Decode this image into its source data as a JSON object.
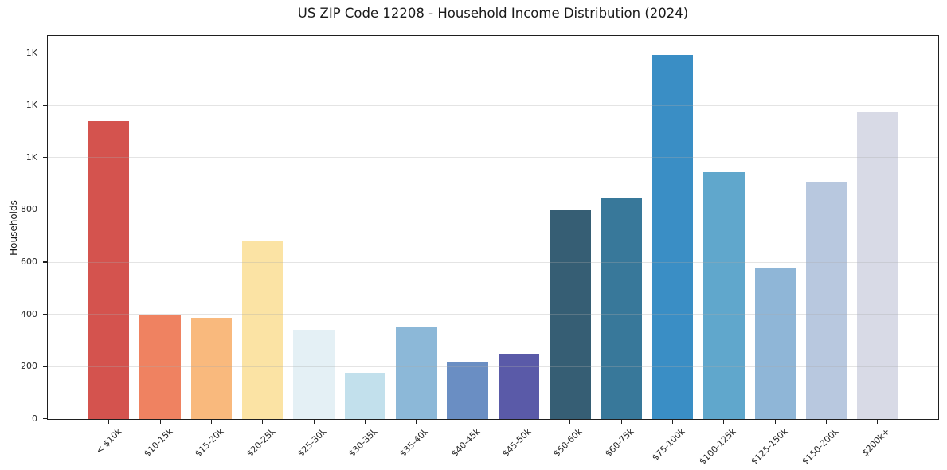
{
  "title": "US ZIP Code 12208 - Household Income Distribution (2024)",
  "ylabel": "Households",
  "chart_data": {
    "type": "bar",
    "title": "US ZIP Code 12208 - Household Income Distribution (2024)",
    "xlabel": "",
    "ylabel": "Households",
    "categories": [
      "< $10k",
      "$10-15k",
      "$15-20k",
      "$20-25k",
      "$25-30k",
      "$30-35k",
      "$35-40k",
      "$40-45k",
      "$45-50k",
      "$50-60k",
      "$60-75k",
      "$75-100k",
      "$100-125k",
      "$125-150k",
      "$150-200k",
      "$200k+"
    ],
    "values": [
      1140,
      400,
      388,
      682,
      341,
      178,
      350,
      218,
      247,
      797,
      846,
      1392,
      943,
      576,
      909,
      1177
    ],
    "bar_colors": [
      "#d4534e",
      "#ef8261",
      "#f9b97d",
      "#fbe3a4",
      "#e4f0f5",
      "#c2e0ec",
      "#8cb8d8",
      "#6a8ec3",
      "#5a5aa8",
      "#365e74",
      "#38789a",
      "#3a8ec5",
      "#60a7cc",
      "#8fb6d7",
      "#b8c8df",
      "#d8dae6"
    ],
    "ylim": [
      0,
      1465
    ],
    "yticks": {
      "values": [
        0,
        200,
        400,
        600,
        800,
        1000,
        1200,
        1400
      ],
      "labels": [
        "0",
        "200",
        "400",
        "600",
        "800",
        "1K",
        "1K",
        "1K"
      ]
    },
    "grid": "horizontal",
    "legend": false,
    "frame": true
  },
  "colors": {
    "spine": "#1f1f1f",
    "grid": "#e9e9e9",
    "background": "#ffffff",
    "text": "#262626"
  }
}
